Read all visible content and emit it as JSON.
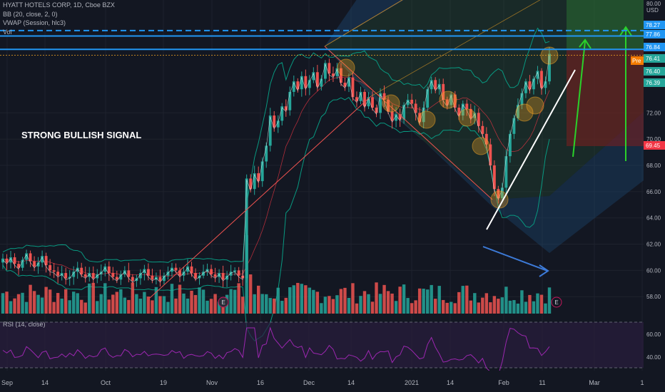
{
  "header": {
    "symbol": "HYATT HOTELS CORP, 1D, Cboe BZX",
    "bb": "BB (20, close, 2, 0)",
    "vwap": "VWAP (Session, hlc3)",
    "vol": "Vol"
  },
  "rsi_label": "RSI (14, close)",
  "annotation": "STRONG BULLISH SIGNAL",
  "colors": {
    "bg": "#131722",
    "up": "#26a69a",
    "down": "#ef5350",
    "blue_line": "#2196f3",
    "green_arrow": "#2ad12a",
    "rsi": "#9c27b0",
    "pre": "#f57c00",
    "red_tag": "#f23645"
  },
  "chart_data": {
    "type": "candlestick",
    "title": "HYATT HOTELS CORP, 1D, Cboe BZX",
    "y_axis": {
      "unit": "USD",
      "ticks": [
        58.0,
        60.0,
        62.0,
        64.0,
        66.0,
        68.0,
        70.0,
        72.0
      ],
      "range": [
        56.6,
        80.6
      ]
    },
    "top_tick": "80.00",
    "axis_unit_label": "USD",
    "x_axis": {
      "ticks": [
        "Sep",
        "14",
        "Oct",
        "19",
        "Nov",
        "16",
        "Dec",
        "14",
        "2021",
        "14",
        "Feb",
        "11",
        "Mar",
        "1"
      ]
    },
    "price_tags": [
      {
        "label": "78.27",
        "value": 78.27,
        "color": "#2196f3"
      },
      {
        "label": "77.86",
        "value": 77.86,
        "color": "#2196f3"
      },
      {
        "label": "76.84",
        "value": 76.84,
        "color": "#2196f3"
      },
      {
        "label": "76.41",
        "value": 76.41,
        "color": "#26a69a"
      },
      {
        "label": "76.40",
        "value": 76.4,
        "color": "#26a69a"
      },
      {
        "label": "76.39",
        "value": 76.39,
        "color": "#26a69a"
      },
      {
        "label": "69.45",
        "value": 69.45,
        "color": "#f23645"
      }
    ],
    "pre_label": "Pre",
    "horizontal_lines": [
      {
        "value": 78.27,
        "style": "dashed"
      },
      {
        "value": 77.86,
        "style": "solid"
      },
      {
        "value": 76.84,
        "style": "solid"
      }
    ],
    "earnings_markers": [
      "E",
      "E"
    ],
    "rsi_ticks": [
      "60.00",
      "40.00"
    ],
    "candles_close_approx": [
      60.9,
      60.6,
      61.0,
      60.5,
      60.2,
      60.8,
      61.3,
      60.7,
      60.3,
      60.6,
      61.1,
      60.4,
      60.0,
      59.9,
      59.6,
      59.8,
      59.4,
      59.5,
      59.9,
      60.2,
      59.7,
      59.5,
      59.8,
      59.4,
      59.7,
      59.9,
      60.3,
      59.8,
      59.5,
      59.3,
      59.7,
      60.0,
      59.5,
      59.2,
      59.4,
      59.8,
      60.1,
      59.6,
      59.3,
      59.5,
      59.2,
      59.6,
      59.9,
      60.2,
      60.0,
      59.6,
      59.9,
      60.3,
      59.8,
      59.4,
      59.6,
      59.9,
      60.1,
      59.7,
      59.5,
      59.8,
      59.3,
      59.6,
      59.9,
      60.0,
      59.6,
      59.4,
      67.0,
      66.2,
      67.4,
      66.8,
      68.3,
      69.5,
      71.8,
      70.9,
      71.4,
      72.5,
      72.2,
      73.6,
      74.4,
      73.8,
      74.8,
      73.9,
      74.5,
      75.1,
      74.0,
      74.6,
      75.8,
      75.0,
      74.8,
      75.4,
      74.3,
      74.0,
      74.7,
      73.2,
      72.9,
      73.6,
      72.5,
      73.2,
      72.4,
      72.0,
      73.5,
      73.0,
      72.1,
      71.4,
      71.9,
      71.5,
      72.6,
      73.0,
      72.7,
      72.0,
      71.3,
      72.4,
      73.8,
      74.5,
      73.8,
      74.2,
      73.0,
      72.6,
      73.4,
      72.4,
      71.8,
      72.7,
      72.3,
      71.6,
      72.0,
      71.0,
      70.4,
      69.6,
      68.0,
      66.2,
      65.5,
      66.3,
      68.7,
      70.4,
      71.6,
      72.6,
      73.5,
      74.4,
      73.8,
      74.6,
      75.2,
      73.9,
      74.4,
      76.5
    ],
    "shapes": {
      "pitchfork_median": "teal/green channel",
      "descending_channel": "blue box",
      "arrows": [
        "white up trend",
        "blue down arrow",
        "green up arrows"
      ]
    }
  }
}
